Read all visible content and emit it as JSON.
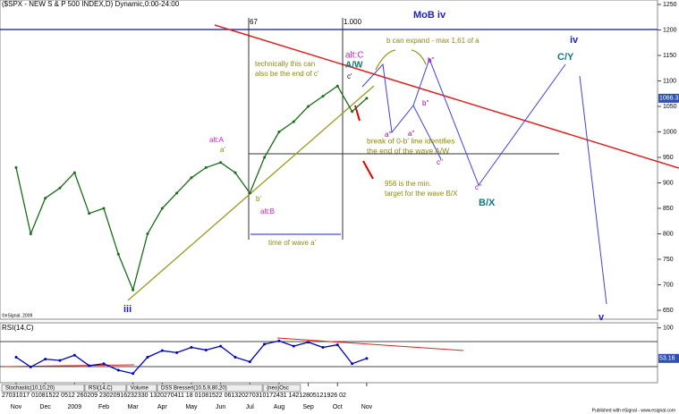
{
  "chart_data": [
    {
      "type": "line",
      "title": "($SPX - NEW S & P 500 INDEX,D) Dynamic,0:00-24:00",
      "categories": [
        "Nov",
        null,
        "Dec",
        null,
        "2009",
        null,
        "Feb",
        null,
        "Mar",
        null,
        "Apr",
        null,
        "May",
        null,
        "Jun",
        null,
        "Jul",
        null,
        "Aug",
        null,
        "Sep",
        null,
        "Oct",
        null,
        "Nov"
      ],
      "series": [
        {
          "name": "$SPX",
          "color": "#1a6b1a",
          "values": [
            930,
            800,
            870,
            890,
            920,
            840,
            850,
            760,
            690,
            800,
            850,
            880,
            910,
            930,
            940,
            920,
            880,
            950,
            1000,
            1020,
            1050,
            1070,
            1090,
            1040,
            1066
          ]
        }
      ],
      "ylim": [
        650,
        1250
      ],
      "yticks": [
        650,
        700,
        750,
        800,
        850,
        900,
        950,
        1000,
        1050,
        1100,
        1150,
        1200,
        1250
      ],
      "last_price_label": "1066.3",
      "day_labels": "27031017 01081522 0512  260209  23020916232330  1320270411 18 01081522  061320270310172431  14212805121926 02",
      "annotations": [
        "MoB iv",
        "67",
        "1.000",
        "alt:C",
        "A/W",
        "b can expand - max 1,61 of a",
        "iv",
        "C/Y",
        "technically this can",
        "also be the end of c'",
        "c'",
        "b''",
        "b''",
        "a''",
        "a''",
        "c''",
        "c''",
        "alt:A",
        "a'",
        "break of 0-b'  line identifies",
        "the end of the wave A/W",
        "956 is the min.",
        "target for the wave B/X",
        "B/X",
        "b'",
        "alt:B",
        "time of wave a'",
        "iii",
        "v"
      ],
      "copyright": "©eSignal, 2009",
      "footer": "Published with eSignal - www.esignal.com"
    },
    {
      "type": "line",
      "title": "RSI(14,C)",
      "series": [
        {
          "name": "RSI",
          "color": "#0000c0",
          "values": [
            55,
            40,
            52,
            50,
            58,
            42,
            45,
            35,
            30,
            55,
            65,
            62,
            70,
            66,
            72,
            55,
            48,
            75,
            80,
            72,
            78,
            70,
            74,
            45,
            53.16
          ],
          "value_labels": [
            null,
            null,
            null,
            null,
            null,
            null,
            null,
            null,
            null,
            null,
            null,
            null,
            null,
            null,
            null,
            null,
            null,
            null,
            null,
            null,
            null,
            null,
            null,
            null,
            "53.16"
          ]
        }
      ],
      "ylim": [
        20,
        105
      ],
      "yticks": [
        100
      ],
      "tabs": [
        "Stochastic(10,10,20)",
        "RSI(14,C)",
        "Volume",
        "DSS Bressert(10,5,9,80,20)",
        "(neo)Osc"
      ]
    }
  ]
}
